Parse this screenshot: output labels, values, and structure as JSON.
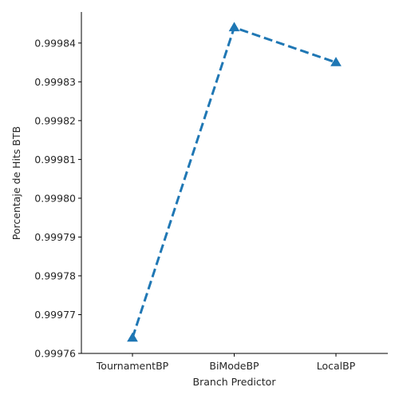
{
  "chart_data": {
    "type": "line",
    "categories": [
      "TournamentBP",
      "BiModeBP",
      "LocalBP"
    ],
    "series": [
      {
        "values": [
          0.999764,
          0.999844,
          0.999835
        ]
      }
    ],
    "xlabel": "Branch Predictor",
    "ylabel": "Porcentaje de Hits BTB",
    "ylim": [
      0.99976,
      0.999848
    ],
    "yticks": [
      0.99976,
      0.99977,
      0.99978,
      0.99979,
      0.9998,
      0.99981,
      0.99982,
      0.99983,
      0.99984
    ],
    "ytick_labels": [
      "0.99976",
      "0.99977",
      "0.99978",
      "0.99979",
      "0.99980",
      "0.99981",
      "0.99982",
      "0.99983",
      "0.99984"
    ],
    "grid": false,
    "line_style": "dashed",
    "marker": "triangle-up",
    "line_color": "#1f77b4"
  }
}
